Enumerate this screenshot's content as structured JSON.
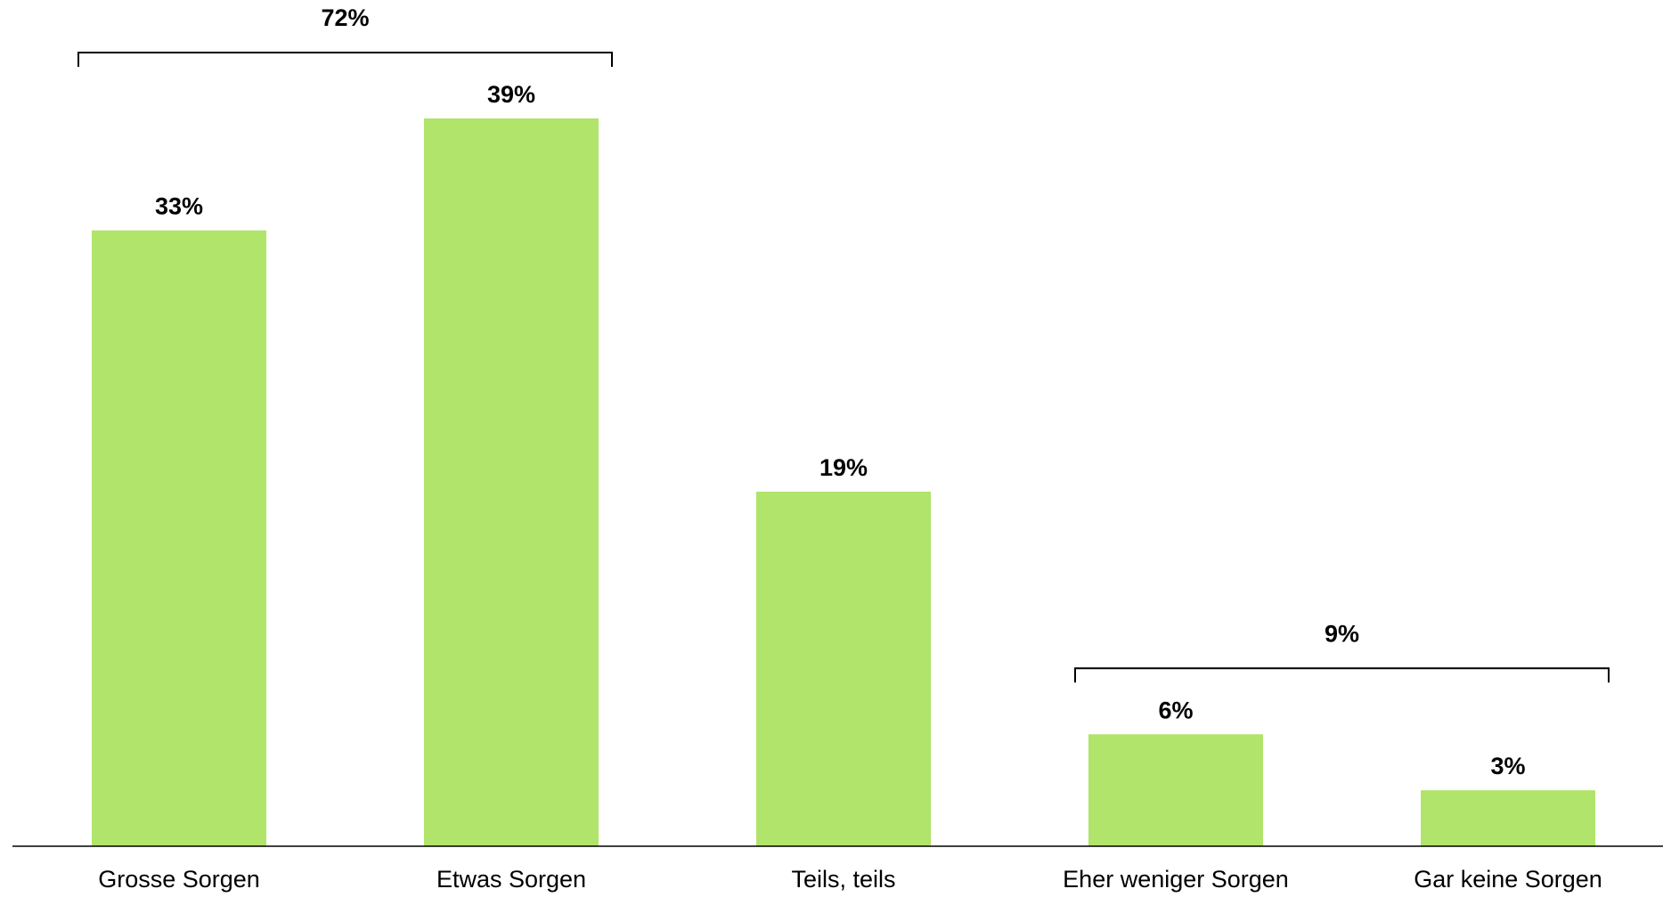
{
  "chart_data": {
    "type": "bar",
    "categories": [
      "Grosse Sorgen",
      "Etwas Sorgen",
      "Teils, teils",
      "Eher weniger Sorgen",
      "Gar keine Sorgen"
    ],
    "values": [
      33,
      39,
      19,
      6,
      3
    ],
    "value_labels": [
      "33%",
      "39%",
      "19%",
      "6%",
      "3%"
    ],
    "unit": "%",
    "ylim": [
      0,
      40
    ],
    "grid": false,
    "bar_color": "#b0e46a",
    "groups": [
      {
        "label": "72%",
        "value": 72,
        "from": 0,
        "to": 1
      },
      {
        "label": "9%",
        "value": 9,
        "from": 3,
        "to": 4
      }
    ]
  }
}
